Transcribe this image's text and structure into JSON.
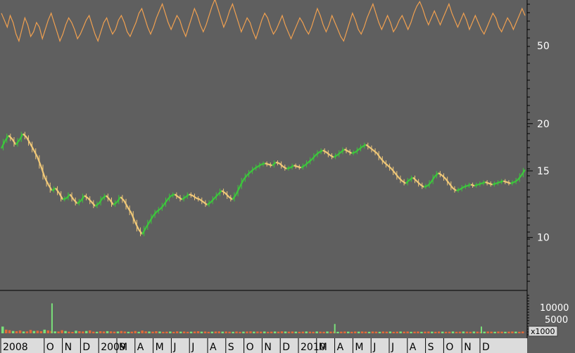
{
  "chart_data": [
    {
      "type": "line",
      "name": "oscillator",
      "y_tick_labels": [
        "50"
      ],
      "color": "#f0a050",
      "x_start": "2008-07",
      "x_end": "2010-12",
      "values": [
        64,
        61,
        58,
        63,
        60,
        55,
        52,
        57,
        62,
        59,
        54,
        56,
        60,
        58,
        53,
        57,
        61,
        64,
        60,
        56,
        52,
        55,
        59,
        62,
        60,
        57,
        53,
        55,
        58,
        61,
        63,
        59,
        55,
        52,
        56,
        60,
        62,
        58,
        55,
        57,
        61,
        63,
        60,
        56,
        54,
        57,
        60,
        64,
        66,
        62,
        58,
        55,
        58,
        62,
        65,
        68,
        64,
        60,
        57,
        60,
        63,
        61,
        57,
        54,
        58,
        62,
        66,
        63,
        59,
        56,
        59,
        63,
        67,
        70,
        66,
        62,
        58,
        61,
        65,
        68,
        64,
        60,
        56,
        59,
        62,
        60,
        56,
        53,
        57,
        61,
        64,
        62,
        58,
        55,
        57,
        60,
        63,
        59,
        56,
        53,
        56,
        59,
        62,
        60,
        57,
        55,
        58,
        62,
        66,
        63,
        59,
        56,
        59,
        63,
        60,
        57,
        54,
        52,
        56,
        60,
        64,
        61,
        57,
        55,
        58,
        62,
        65,
        68,
        64,
        60,
        57,
        60,
        63,
        60,
        56,
        58,
        61,
        63,
        60,
        57,
        60,
        64,
        67,
        69,
        66,
        62,
        59,
        62,
        65,
        62,
        59,
        62,
        65,
        68,
        64,
        61,
        58,
        61,
        64,
        61,
        57,
        60,
        63,
        60,
        57,
        55,
        58,
        61,
        64,
        62,
        58,
        56,
        59,
        62,
        60,
        57,
        60,
        63,
        66,
        63
      ]
    },
    {
      "type": "line",
      "name": "price",
      "y_tick_labels": [
        "20",
        "15",
        "10"
      ],
      "y_scale": "log",
      "up_color": "#3cc83c",
      "down_color": "#f0c878",
      "values": [
        17.2,
        18.0,
        18.6,
        18.2,
        17.6,
        18.1,
        18.8,
        18.4,
        17.7,
        17.0,
        16.3,
        15.4,
        14.4,
        13.8,
        13.3,
        13.5,
        13.1,
        12.6,
        12.7,
        13.0,
        12.6,
        12.3,
        12.5,
        12.9,
        12.7,
        12.4,
        12.1,
        12.3,
        12.7,
        12.9,
        12.6,
        12.2,
        12.4,
        12.8,
        12.5,
        12.0,
        11.6,
        11.0,
        10.5,
        10.2,
        10.6,
        11.0,
        11.4,
        11.7,
        11.9,
        12.2,
        12.6,
        12.9,
        13.0,
        12.8,
        12.6,
        12.8,
        13.0,
        12.9,
        12.7,
        12.6,
        12.4,
        12.2,
        12.4,
        12.7,
        13.0,
        13.3,
        13.1,
        12.8,
        12.6,
        13.0,
        13.6,
        14.2,
        14.6,
        14.9,
        15.2,
        15.4,
        15.6,
        15.7,
        15.6,
        15.5,
        15.8,
        15.7,
        15.4,
        15.2,
        15.3,
        15.5,
        15.4,
        15.3,
        15.5,
        15.8,
        16.1,
        16.5,
        16.8,
        17.0,
        16.8,
        16.5,
        16.3,
        16.5,
        16.8,
        17.1,
        16.9,
        16.7,
        16.8,
        17.1,
        17.4,
        17.6,
        17.3,
        17.0,
        16.7,
        16.2,
        15.8,
        15.5,
        15.2,
        14.8,
        14.4,
        14.1,
        13.9,
        14.2,
        14.4,
        14.1,
        13.8,
        13.6,
        13.7,
        14.0,
        14.5,
        14.8,
        14.6,
        14.3,
        13.9,
        13.5,
        13.3,
        13.4,
        13.6,
        13.7,
        13.8,
        13.7,
        13.8,
        13.9,
        14.0,
        13.9,
        13.8,
        13.9,
        14.0,
        14.1,
        14.0,
        13.9,
        14.0,
        14.2,
        14.6,
        15.1
      ]
    },
    {
      "type": "bar",
      "name": "volume",
      "y_tick_labels": [
        "10000",
        "5000"
      ],
      "unit_label": "x1000",
      "up_color": "#7ae07a",
      "down_color": "#e06a3a",
      "values": [
        2600,
        1400,
        1200,
        900,
        800,
        1100,
        700,
        750,
        1300,
        900,
        1000,
        800,
        1400,
        1100,
        900,
        750,
        700,
        1200,
        900,
        650,
        550,
        1000,
        800,
        700,
        900,
        1100,
        650,
        600,
        800,
        700,
        850,
        750,
        650,
        700,
        900,
        700,
        600,
        650,
        900,
        600,
        1050,
        750,
        700,
        650,
        800,
        700,
        600,
        650,
        700,
        600,
        750,
        650,
        700,
        600,
        650,
        700,
        800,
        650,
        700,
        600,
        650,
        700,
        750,
        650,
        700,
        650,
        600,
        700,
        600,
        650,
        700,
        750,
        650,
        700,
        650,
        700,
        600,
        650,
        700,
        650,
        750,
        700,
        650,
        700,
        650,
        600,
        650,
        700,
        650,
        600,
        700,
        650,
        600,
        700,
        650,
        700,
        600,
        650,
        700,
        650,
        600,
        700,
        650,
        700,
        650,
        600,
        700,
        650,
        600,
        700,
        650,
        700,
        600,
        650,
        700,
        650,
        700,
        600,
        650,
        700,
        600,
        650,
        700,
        650,
        600,
        700,
        650,
        600,
        650,
        700,
        600,
        650,
        700,
        650,
        600,
        700,
        650,
        600,
        650,
        700,
        650,
        600,
        700,
        650,
        600,
        650,
        700,
        650,
        600,
        700
      ],
      "spikes": [
        {
          "index": 14,
          "value": 11500
        },
        {
          "index": 95,
          "value": 3600
        },
        {
          "index": 137,
          "value": 2600
        }
      ]
    }
  ],
  "x_axis": {
    "labels": [
      "2008",
      "O",
      "N",
      "D",
      "2009",
      "M",
      "A",
      "M",
      "J",
      "J",
      "A",
      "S",
      "O",
      "N",
      "D",
      "2010",
      "M",
      "A",
      "M",
      "J",
      "J",
      "A",
      "S",
      "O",
      "N",
      "D"
    ]
  }
}
